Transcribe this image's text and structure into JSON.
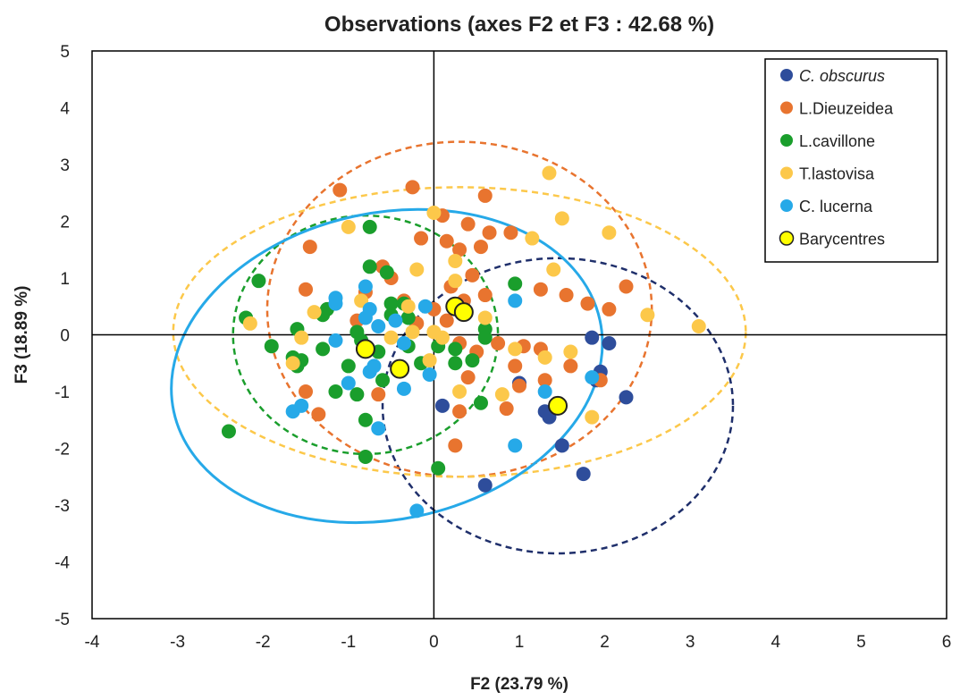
{
  "chart_data": {
    "type": "scatter",
    "title": "Observations (axes F2 et F3 : 42.68 %)",
    "xlabel": "F2 (23.79 %)",
    "ylabel": "F3 (18.89 %)",
    "xlim": [
      -4,
      6
    ],
    "ylim": [
      -5,
      5
    ],
    "xticks": [
      "-4",
      "-3",
      "-2",
      "-1",
      "0",
      "1",
      "2",
      "3",
      "4",
      "5",
      "6"
    ],
    "yticks": [
      "5",
      "4",
      "3",
      "2",
      "1",
      "0",
      "-1",
      "-2",
      "-3",
      "-4",
      "-5"
    ],
    "grid": false,
    "legend_position": "top-right",
    "series": [
      {
        "name": "C. obscurus",
        "italic": true,
        "color": "#2e4d9b",
        "ellipse": {
          "cx": 1.45,
          "cy": -1.25,
          "rx": 2.05,
          "ry": 2.6,
          "angle": 0,
          "stroke": "#1f2f6b",
          "dashed": true
        },
        "points": [
          [
            1.85,
            -0.05
          ],
          [
            2.05,
            -0.15
          ],
          [
            1.9,
            -0.8
          ],
          [
            1.95,
            -0.65
          ],
          [
            2.25,
            -1.1
          ],
          [
            1.3,
            -1.35
          ],
          [
            1.35,
            -1.45
          ],
          [
            1.5,
            -1.95
          ],
          [
            1.75,
            -2.45
          ],
          [
            0.6,
            -2.65
          ],
          [
            0.1,
            -1.25
          ],
          [
            1.0,
            -0.85
          ]
        ]
      },
      {
        "name": "L.Dieuzeidea",
        "italic": false,
        "color": "#e8742f",
        "ellipse": {
          "cx": 0.3,
          "cy": 0.45,
          "rx": 2.25,
          "ry": 2.95,
          "angle": 0,
          "stroke": "#e8742f",
          "dashed": true
        },
        "points": [
          [
            -1.1,
            2.55
          ],
          [
            -0.25,
            2.6
          ],
          [
            0.6,
            2.45
          ],
          [
            0.1,
            2.1
          ],
          [
            0.4,
            1.95
          ],
          [
            0.65,
            1.8
          ],
          [
            0.9,
            1.8
          ],
          [
            -0.15,
            1.7
          ],
          [
            0.15,
            1.65
          ],
          [
            0.3,
            1.5
          ],
          [
            0.55,
            1.55
          ],
          [
            -1.45,
            1.55
          ],
          [
            -0.6,
            1.2
          ],
          [
            -0.5,
            1.0
          ],
          [
            0.45,
            1.05
          ],
          [
            0.2,
            0.85
          ],
          [
            0.35,
            0.6
          ],
          [
            0.6,
            0.7
          ],
          [
            1.25,
            0.8
          ],
          [
            1.55,
            0.7
          ],
          [
            1.8,
            0.55
          ],
          [
            2.05,
            0.45
          ],
          [
            2.25,
            0.85
          ],
          [
            -1.5,
            0.8
          ],
          [
            -0.8,
            0.75
          ],
          [
            -0.9,
            0.25
          ],
          [
            -0.35,
            0.6
          ],
          [
            0.0,
            0.45
          ],
          [
            0.15,
            0.25
          ],
          [
            -0.2,
            0.2
          ],
          [
            0.3,
            -0.15
          ],
          [
            0.75,
            -0.15
          ],
          [
            0.5,
            -0.3
          ],
          [
            1.05,
            -0.2
          ],
          [
            1.25,
            -0.25
          ],
          [
            0.95,
            -0.55
          ],
          [
            1.6,
            -0.55
          ],
          [
            1.3,
            -0.8
          ],
          [
            0.4,
            -0.75
          ],
          [
            1.0,
            -0.9
          ],
          [
            1.95,
            -0.8
          ],
          [
            -1.5,
            -1.0
          ],
          [
            -0.65,
            -1.05
          ],
          [
            0.85,
            -1.3
          ],
          [
            0.3,
            -1.35
          ],
          [
            -1.35,
            -1.4
          ],
          [
            0.25,
            -1.95
          ]
        ]
      },
      {
        "name": "L.cavillone",
        "italic": false,
        "color": "#1a9e2c",
        "ellipse": {
          "cx": -0.8,
          "cy": 0.0,
          "rx": 1.55,
          "ry": 2.1,
          "angle": 0,
          "stroke": "#1a9e2c",
          "dashed": true
        },
        "points": [
          [
            -0.75,
            1.9
          ],
          [
            -0.75,
            1.2
          ],
          [
            -0.55,
            1.1
          ],
          [
            -2.05,
            0.95
          ],
          [
            -1.25,
            0.45
          ],
          [
            -0.5,
            0.55
          ],
          [
            -0.35,
            0.55
          ],
          [
            -0.9,
            0.05
          ],
          [
            -2.2,
            0.3
          ],
          [
            -1.6,
            0.1
          ],
          [
            -1.3,
            0.35
          ],
          [
            -0.85,
            -0.1
          ],
          [
            -0.5,
            0.35
          ],
          [
            -0.3,
            0.3
          ],
          [
            -1.9,
            -0.2
          ],
          [
            -1.65,
            -0.4
          ],
          [
            -1.55,
            -0.45
          ],
          [
            -1.3,
            -0.25
          ],
          [
            -1.6,
            -0.55
          ],
          [
            -1.0,
            -0.55
          ],
          [
            -0.65,
            -0.3
          ],
          [
            -0.3,
            -0.2
          ],
          [
            -0.15,
            -0.5
          ],
          [
            0.05,
            -0.2
          ],
          [
            0.25,
            -0.25
          ],
          [
            0.25,
            -0.5
          ],
          [
            0.45,
            -0.45
          ],
          [
            0.6,
            0.1
          ],
          [
            0.6,
            -0.05
          ],
          [
            0.95,
            0.9
          ],
          [
            -1.15,
            -1.0
          ],
          [
            -0.6,
            -0.8
          ],
          [
            -0.8,
            -1.5
          ],
          [
            0.55,
            -1.2
          ],
          [
            -2.4,
            -1.7
          ],
          [
            -0.8,
            -2.15
          ],
          [
            0.05,
            -2.35
          ],
          [
            -0.9,
            -1.05
          ]
        ]
      },
      {
        "name": "T.lastovisa",
        "italic": false,
        "color": "#fcc84a",
        "ellipse": {
          "cx": 0.3,
          "cy": 0.05,
          "rx": 3.35,
          "ry": 2.55,
          "angle": 0,
          "stroke": "#fcc84a",
          "dashed": true
        },
        "points": [
          [
            -1.0,
            1.9
          ],
          [
            0.0,
            2.15
          ],
          [
            1.35,
            2.85
          ],
          [
            1.5,
            2.05
          ],
          [
            2.05,
            1.8
          ],
          [
            1.15,
            1.7
          ],
          [
            -0.2,
            1.15
          ],
          [
            0.25,
            1.3
          ],
          [
            0.25,
            0.95
          ],
          [
            1.4,
            1.15
          ],
          [
            2.5,
            0.35
          ],
          [
            3.1,
            0.15
          ],
          [
            -1.4,
            0.4
          ],
          [
            -0.85,
            0.6
          ],
          [
            -0.3,
            0.5
          ],
          [
            -2.15,
            0.2
          ],
          [
            -1.55,
            -0.05
          ],
          [
            -0.5,
            -0.05
          ],
          [
            -0.25,
            0.05
          ],
          [
            0.0,
            0.05
          ],
          [
            0.1,
            -0.05
          ],
          [
            0.6,
            0.3
          ],
          [
            0.95,
            -0.25
          ],
          [
            1.3,
            -0.4
          ],
          [
            1.6,
            -0.3
          ],
          [
            -1.65,
            -0.5
          ],
          [
            -0.05,
            -0.45
          ],
          [
            0.3,
            -1.0
          ],
          [
            0.8,
            -1.05
          ],
          [
            1.85,
            -1.45
          ]
        ]
      },
      {
        "name": "C. lucerna",
        "italic": false,
        "color": "#26a9e8",
        "ellipse": {
          "cx": -0.55,
          "cy": -0.55,
          "rx": 2.55,
          "ry": 2.7,
          "angle": -12,
          "stroke": "#26a9e8",
          "dashed": false
        },
        "points": [
          [
            -1.15,
            0.65
          ],
          [
            -0.8,
            0.85
          ],
          [
            -0.75,
            0.45
          ],
          [
            -0.8,
            0.3
          ],
          [
            -0.65,
            0.15
          ],
          [
            -0.45,
            0.25
          ],
          [
            -0.1,
            0.5
          ],
          [
            -1.15,
            0.55
          ],
          [
            -1.15,
            -0.1
          ],
          [
            -0.35,
            -0.15
          ],
          [
            -0.75,
            -0.65
          ],
          [
            -0.7,
            -0.55
          ],
          [
            -1.0,
            -0.85
          ],
          [
            -0.35,
            -0.95
          ],
          [
            -0.05,
            -0.7
          ],
          [
            -1.55,
            -1.25
          ],
          [
            -1.65,
            -1.35
          ],
          [
            -0.65,
            -1.65
          ],
          [
            0.95,
            0.6
          ],
          [
            1.3,
            -1.0
          ],
          [
            1.85,
            -0.75
          ],
          [
            0.95,
            -1.95
          ],
          [
            -0.2,
            -3.1
          ]
        ]
      },
      {
        "name": "Barycentres",
        "italic": false,
        "color": "#ffff00",
        "marker": "barycentre",
        "points": [
          [
            0.25,
            0.5
          ],
          [
            0.35,
            0.4
          ],
          [
            -0.8,
            -0.25
          ],
          [
            -0.4,
            -0.6
          ],
          [
            1.45,
            -1.25
          ]
        ]
      }
    ]
  }
}
